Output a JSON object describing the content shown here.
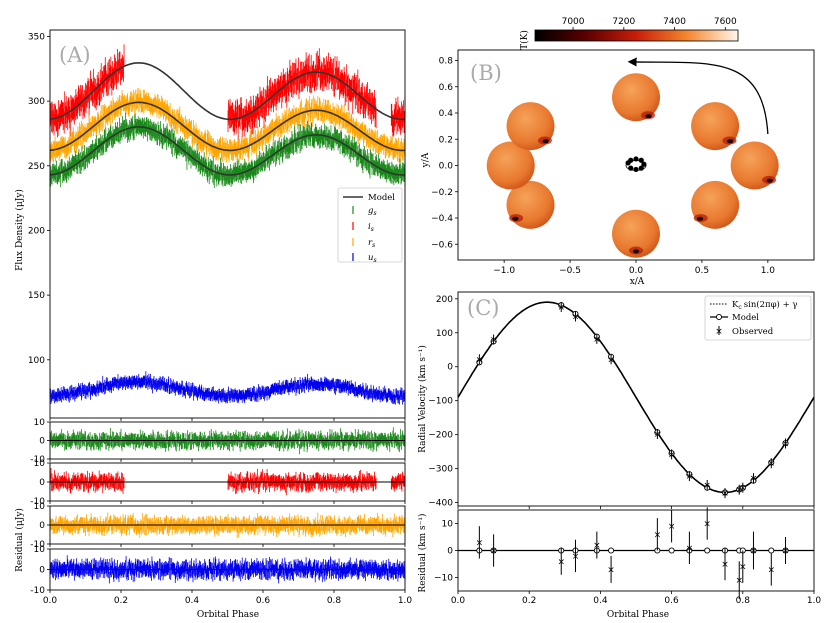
{
  "colors": {
    "g": "#1a8a1a",
    "i": "#ff0000",
    "r": "#ffa500",
    "u": "#0000ee",
    "model": "#333333"
  },
  "chart_data": [
    {
      "id": "A",
      "type": "line",
      "panel_label": "(A)",
      "xlabel": "Orbital Phase",
      "ylabel": "Flux Density (μJy)",
      "xlim": [
        0,
        1
      ],
      "ylim": [
        55,
        355
      ],
      "xticks": [
        "0.0",
        "0.2",
        "0.4",
        "0.6",
        "0.8",
        "1.0"
      ],
      "yticks": [
        "100",
        "150",
        "200",
        "250",
        "300",
        "350"
      ],
      "legend": [
        "Model",
        "g_s",
        "i_s",
        "r_s",
        "u_s"
      ],
      "legend_display": {
        "model": "Model",
        "g": "g",
        "i": "i",
        "r": "r",
        "u": "u",
        "sub": "s"
      },
      "series": [
        {
          "name": "i_s",
          "color": "i",
          "mean": 306,
          "amp": 20,
          "noise": 6,
          "gaps": [
            [
              0.21,
              0.5
            ],
            [
              0.92,
              0.96
            ]
          ]
        },
        {
          "name": "r_s",
          "color": "r",
          "mean": 279,
          "amp": 17,
          "noise": 4,
          "gaps": []
        },
        {
          "name": "g_s",
          "color": "g",
          "mean": 260,
          "amp": 17,
          "noise": 4,
          "gaps": []
        },
        {
          "name": "u_s",
          "color": "u",
          "mean": 77,
          "amp": 5,
          "noise": 2.5,
          "gaps": []
        }
      ],
      "residual_panels": [
        {
          "color": "g",
          "ylim": [
            -10,
            10
          ],
          "yticks": [
            "10",
            "0",
            "-10"
          ],
          "gaps": []
        },
        {
          "color": "i",
          "ylim": [
            -10,
            10
          ],
          "yticks": [
            "10",
            "0",
            "-10"
          ],
          "gaps": [
            [
              0.21,
              0.5
            ],
            [
              0.92,
              0.96
            ]
          ]
        },
        {
          "color": "r",
          "ylim": [
            -10,
            10
          ],
          "yticks": [
            "10",
            "0",
            "-10"
          ],
          "gaps": []
        },
        {
          "color": "u",
          "ylim": [
            -10,
            10
          ],
          "yticks": [
            "10",
            "0",
            "-10"
          ],
          "gaps": []
        }
      ],
      "residual_ylabel": "Residual (μJy)"
    },
    {
      "id": "B",
      "type": "scatter",
      "panel_label": "(B)",
      "xlabel": "x/A",
      "ylabel": "y/A",
      "xlim": [
        -1.35,
        1.35
      ],
      "ylim": [
        -0.72,
        0.88
      ],
      "xticks": [
        "−1.0",
        "−0.5",
        "0.0",
        "0.5",
        "1.0"
      ],
      "yticks": [
        "0.8",
        "0.6",
        "0.4",
        "0.2",
        "0.0",
        "−0.2",
        "−0.4",
        "−0.6"
      ],
      "colorbar": {
        "label": "T(K)",
        "min": 6850,
        "max": 7650,
        "ticks": [
          "7000",
          "7200",
          "7400",
          "7600"
        ]
      },
      "stars": [
        {
          "x": 0.0,
          "y": 0.52,
          "spot": "bottom-right"
        },
        {
          "x": 0.6,
          "y": 0.3,
          "spot": "lower-right"
        },
        {
          "x": 0.9,
          "y": 0.0,
          "spot": "lower-right"
        },
        {
          "x": 0.6,
          "y": -0.3,
          "spot": "lower-left"
        },
        {
          "x": 0.0,
          "y": -0.52,
          "spot": "bottom"
        },
        {
          "x": -0.8,
          "y": -0.3,
          "spot": "lower-left"
        },
        {
          "x": -0.95,
          "y": 0.0,
          "spot": "none"
        },
        {
          "x": -0.8,
          "y": 0.3,
          "spot": "lower-right"
        }
      ],
      "companion": [
        [
          -0.06,
          0.02
        ],
        [
          -0.04,
          0.04
        ],
        [
          0.0,
          0.05
        ],
        [
          0.04,
          0.04
        ],
        [
          0.06,
          0.01
        ],
        [
          0.04,
          -0.02
        ],
        [
          0.0,
          -0.03
        ],
        [
          -0.04,
          -0.02
        ]
      ]
    },
    {
      "id": "C",
      "type": "line",
      "panel_label": "(C)",
      "xlabel": "Orbital Phase",
      "ylabel": "Radial Velocity (km s⁻¹)",
      "xlim": [
        0,
        1
      ],
      "ylim": [
        -410,
        220
      ],
      "K": 280,
      "gamma": -90,
      "xticks": [
        "0.0",
        "0.2",
        "0.4",
        "0.6",
        "0.8",
        "1.0"
      ],
      "yticks": [
        "200",
        "100",
        "0",
        "−100",
        "−200",
        "−300",
        "−400"
      ],
      "legend": [
        "K_c sin(2πφ) + γ",
        "Model",
        "Observed"
      ],
      "legend_display": [
        "K",
        "c",
        "sin(2πφ) + γ",
        "Model",
        "Observed"
      ],
      "observed": [
        {
          "x": 0.06,
          "y": 22
        },
        {
          "x": 0.1,
          "y": 80
        },
        {
          "x": 0.29,
          "y": 176
        },
        {
          "x": 0.33,
          "y": 148
        },
        {
          "x": 0.39,
          "y": 82
        },
        {
          "x": 0.43,
          "y": 22
        },
        {
          "x": 0.56,
          "y": -198
        },
        {
          "x": 0.6,
          "y": -258
        },
        {
          "x": 0.65,
          "y": -322
        },
        {
          "x": 0.7,
          "y": -348
        },
        {
          "x": 0.75,
          "y": -372
        },
        {
          "x": 0.79,
          "y": -362
        },
        {
          "x": 0.8,
          "y": -356
        },
        {
          "x": 0.83,
          "y": -328
        },
        {
          "x": 0.88,
          "y": -284
        },
        {
          "x": 0.92,
          "y": -226
        }
      ],
      "residual": {
        "ylabel": "Residual (km s⁻¹)",
        "ylim": [
          -15,
          15
        ],
        "yticks": [
          "10",
          "0",
          "−10"
        ],
        "obs": [
          3,
          0,
          -4,
          -2,
          2,
          -7,
          6,
          9,
          1,
          10,
          -5,
          -11,
          -6,
          0,
          -7,
          0
        ],
        "err": [
          6,
          6,
          5,
          6,
          5,
          5,
          6,
          6,
          6,
          6,
          6,
          7,
          6,
          7,
          6,
          5
        ]
      }
    }
  ]
}
